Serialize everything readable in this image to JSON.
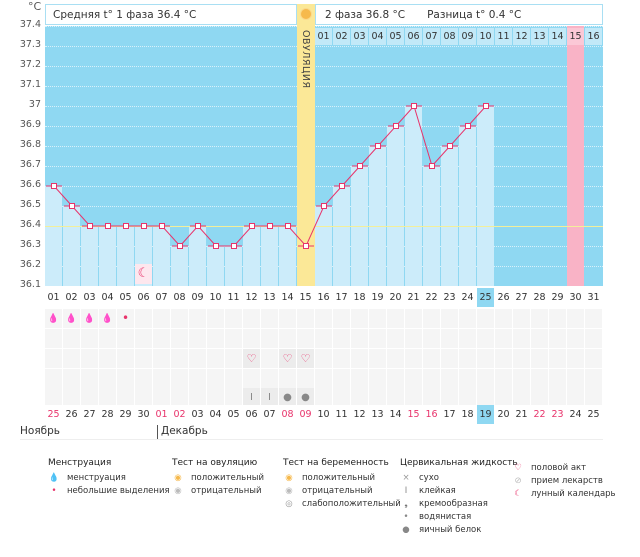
{
  "chart": {
    "unit": "°C",
    "y_ticks": [
      "37.4",
      "37.3",
      "37.2",
      "37.1",
      "37",
      "36.9",
      "36.8",
      "36.7",
      "36.6",
      "36.5",
      "36.4",
      "36.3",
      "36.2",
      "36.1"
    ],
    "phase1_label": "Средняя t° 1 фаза 36.4 °C",
    "phase2_label": "2 фаза 36.8 °C",
    "diff_label": "Разница t° 0.4 °C",
    "ovulation_label": "ОВУЛЯЦИЯ",
    "ovulation_day": 15,
    "phase1_avg": 36.4,
    "next_cycle_days": [
      "01",
      "02",
      "03",
      "04",
      "05",
      "06",
      "07",
      "08",
      "09",
      "10",
      "11",
      "12",
      "13",
      "14",
      "15",
      "16"
    ],
    "next_cycle_highlight_day": "15",
    "colors": {
      "background": "#8fd8f2",
      "bar": "#ccecfa",
      "line": "#e8336b",
      "ovulation": "#fbe897",
      "expected_period": "#f9b3c6"
    }
  },
  "chart_data": {
    "type": "line",
    "x": [
      1,
      2,
      3,
      4,
      5,
      6,
      7,
      8,
      9,
      10,
      11,
      12,
      13,
      14,
      15,
      16,
      17,
      18,
      19,
      20,
      21,
      22,
      23,
      24,
      25
    ],
    "values": [
      36.6,
      36.5,
      36.4,
      36.4,
      36.4,
      36.4,
      36.4,
      36.3,
      36.4,
      36.3,
      36.3,
      36.4,
      36.4,
      36.4,
      36.3,
      36.5,
      36.6,
      36.7,
      36.8,
      36.9,
      37.0,
      36.7,
      36.8,
      36.9,
      37.0
    ],
    "ylim": [
      36.1,
      37.4
    ],
    "grid": true,
    "xlabel": "",
    "ylabel": "°C"
  },
  "cycle_days": [
    "01",
    "02",
    "03",
    "04",
    "05",
    "06",
    "07",
    "08",
    "09",
    "10",
    "11",
    "12",
    "13",
    "14",
    "15",
    "16",
    "17",
    "18",
    "19",
    "20",
    "21",
    "22",
    "23",
    "24",
    "25",
    "26",
    "27",
    "28",
    "29",
    "30",
    "31"
  ],
  "current_day_index": 24,
  "dates": [
    "25",
    "26",
    "27",
    "28",
    "29",
    "30",
    "01",
    "02",
    "03",
    "04",
    "05",
    "06",
    "07",
    "08",
    "09",
    "10",
    "11",
    "12",
    "13",
    "14",
    "15",
    "16",
    "17",
    "18",
    "19",
    "20",
    "21",
    "22",
    "23",
    "24",
    "25"
  ],
  "red_date_indices": [
    0,
    6,
    7,
    13,
    14,
    20,
    21,
    27,
    28
  ],
  "months": [
    "Ноябрь",
    "Декабрь"
  ],
  "markers": {
    "menstruation": [
      1,
      2,
      3,
      4
    ],
    "spotting": [
      5
    ],
    "intercourse": [
      12,
      14,
      15
    ],
    "sticky": [
      12,
      13
    ],
    "egg_white": [
      14,
      15
    ],
    "moon": [
      6
    ]
  },
  "legend": [
    {
      "title": "Менструация",
      "items": [
        {
          "icon": "menstruation-drop-icon",
          "label": "менструация"
        },
        {
          "icon": "small-drop-icon",
          "label": "небольшие выделения"
        }
      ]
    },
    {
      "title": "Тест на овуляцию",
      "items": [
        {
          "icon": "positive-test-icon",
          "label": "положительный"
        },
        {
          "icon": "negative-test-icon",
          "label": "отрицательный"
        }
      ]
    },
    {
      "title": "Тест на беременность",
      "items": [
        {
          "icon": "positive-test-icon",
          "label": "положительный"
        },
        {
          "icon": "negative-test-icon",
          "label": "отрицательный"
        },
        {
          "icon": "weak-positive-test-icon",
          "label": "слабоположительный"
        }
      ]
    },
    {
      "title": "Цервикальная жидкость",
      "items": [
        {
          "icon": "dry-icon",
          "label": "сухо"
        },
        {
          "icon": "sticky-icon",
          "label": "клейкая"
        },
        {
          "icon": "creamy-icon",
          "label": "кремообразная"
        },
        {
          "icon": "watery-icon",
          "label": "водянистая"
        },
        {
          "icon": "egg-white-icon",
          "label": "яичный белок"
        }
      ]
    },
    {
      "title": "",
      "items": [
        {
          "icon": "heart-icon",
          "label": "половой акт"
        },
        {
          "icon": "pill-icon",
          "label": "прием лекарств"
        },
        {
          "icon": "moon-icon",
          "label": "лунный календарь"
        }
      ]
    }
  ]
}
